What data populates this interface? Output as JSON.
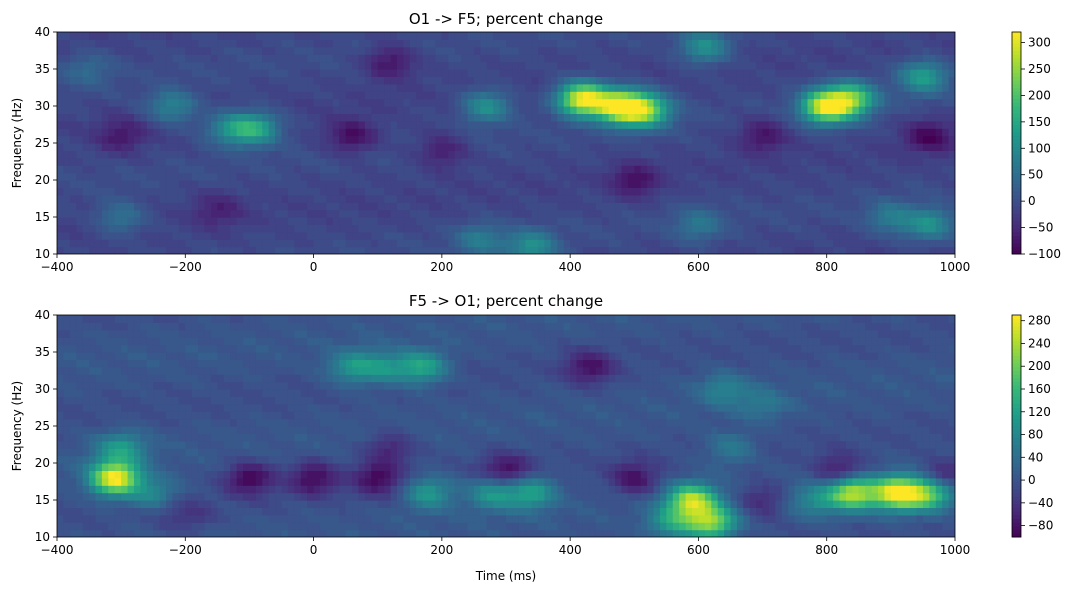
{
  "chart_data": [
    {
      "type": "heatmap",
      "title": "O1 -> F5; percent change",
      "xlabel": "",
      "ylabel": "Frequency (Hz)",
      "xlim": [
        -400,
        1000
      ],
      "ylim": [
        10,
        40
      ],
      "x_ticks": [
        -400,
        -200,
        0,
        200,
        400,
        600,
        800,
        1000
      ],
      "y_ticks": [
        10,
        15,
        20,
        25,
        30,
        35,
        40
      ],
      "colorbar": {
        "min": -100,
        "max": 320,
        "ticks": [
          -100,
          -50,
          0,
          50,
          100,
          150,
          200,
          250,
          300
        ],
        "colormap": "viridis"
      },
      "background_value": -10,
      "hotspots": [
        {
          "x": 420,
          "y": 31,
          "value": 320
        },
        {
          "x": 480,
          "y": 30,
          "value": 330
        },
        {
          "x": 520,
          "y": 29.5,
          "value": 200
        },
        {
          "x": 800,
          "y": 30,
          "value": 300
        },
        {
          "x": 840,
          "y": 31,
          "value": 200
        },
        {
          "x": 270,
          "y": 30,
          "value": 110
        },
        {
          "x": -220,
          "y": 30,
          "value": 90
        },
        {
          "x": -130,
          "y": 27,
          "value": 100
        },
        {
          "x": -90,
          "y": 27,
          "value": 140
        },
        {
          "x": 960,
          "y": 14,
          "value": 110
        },
        {
          "x": 900,
          "y": 15,
          "value": 70
        },
        {
          "x": 950,
          "y": 34,
          "value": 130
        },
        {
          "x": 610,
          "y": 38,
          "value": 110
        },
        {
          "x": 340,
          "y": 11,
          "value": 110
        },
        {
          "x": 260,
          "y": 12,
          "value": 70
        },
        {
          "x": -300,
          "y": 15,
          "value": 60
        },
        {
          "x": 600,
          "y": 14,
          "value": 60
        },
        {
          "x": -350,
          "y": 35,
          "value": 40
        },
        {
          "x": 60,
          "y": 26,
          "value": -90
        },
        {
          "x": 120,
          "y": 36,
          "value": -80
        },
        {
          "x": 960,
          "y": 26,
          "value": -90
        },
        {
          "x": 700,
          "y": 26,
          "value": -80
        },
        {
          "x": 500,
          "y": 20,
          "value": -80
        },
        {
          "x": -300,
          "y": 26,
          "value": -70
        },
        {
          "x": -150,
          "y": 16,
          "value": -60
        },
        {
          "x": 200,
          "y": 24,
          "value": -70
        }
      ]
    },
    {
      "type": "heatmap",
      "title": "F5 -> O1; percent change",
      "xlabel": "Time (ms)",
      "ylabel": "Frequency (Hz)",
      "xlim": [
        -400,
        1000
      ],
      "ylim": [
        10,
        40
      ],
      "x_ticks": [
        -400,
        -200,
        0,
        200,
        400,
        600,
        800,
        1000
      ],
      "y_ticks": [
        10,
        15,
        20,
        25,
        30,
        35,
        40
      ],
      "colorbar": {
        "min": -100,
        "max": 290,
        "ticks": [
          -80,
          -40,
          0,
          40,
          80,
          120,
          160,
          200,
          240,
          280
        ],
        "colormap": "viridis"
      },
      "background_value": 0,
      "hotspots": [
        {
          "x": -310,
          "y": 18,
          "value": 290
        },
        {
          "x": -300,
          "y": 22,
          "value": 110
        },
        {
          "x": -250,
          "y": 16,
          "value": 80
        },
        {
          "x": 590,
          "y": 15,
          "value": 240
        },
        {
          "x": 620,
          "y": 12,
          "value": 210
        },
        {
          "x": 560,
          "y": 12,
          "value": 110
        },
        {
          "x": 910,
          "y": 16,
          "value": 280
        },
        {
          "x": 840,
          "y": 16,
          "value": 240
        },
        {
          "x": 960,
          "y": 16,
          "value": 200
        },
        {
          "x": 780,
          "y": 15,
          "value": 80
        },
        {
          "x": 60,
          "y": 33,
          "value": 100
        },
        {
          "x": 170,
          "y": 33,
          "value": 130
        },
        {
          "x": 110,
          "y": 33,
          "value": 90
        },
        {
          "x": 180,
          "y": 16,
          "value": 110
        },
        {
          "x": 280,
          "y": 16,
          "value": 110
        },
        {
          "x": 340,
          "y": 16,
          "value": 120
        },
        {
          "x": 640,
          "y": 30,
          "value": 70
        },
        {
          "x": 700,
          "y": 28,
          "value": 50
        },
        {
          "x": 650,
          "y": 22,
          "value": 60
        },
        {
          "x": -100,
          "y": 18,
          "value": -95
        },
        {
          "x": 0,
          "y": 18,
          "value": -90
        },
        {
          "x": 100,
          "y": 18,
          "value": -90
        },
        {
          "x": 300,
          "y": 19,
          "value": -90
        },
        {
          "x": 500,
          "y": 18,
          "value": -80
        },
        {
          "x": 820,
          "y": 19,
          "value": -80
        },
        {
          "x": 980,
          "y": 18,
          "value": -90
        },
        {
          "x": 430,
          "y": 33,
          "value": -80
        },
        {
          "x": 120,
          "y": 22,
          "value": -60
        },
        {
          "x": -200,
          "y": 13,
          "value": -40
        },
        {
          "x": 700,
          "y": 15,
          "value": -60
        }
      ]
    }
  ]
}
